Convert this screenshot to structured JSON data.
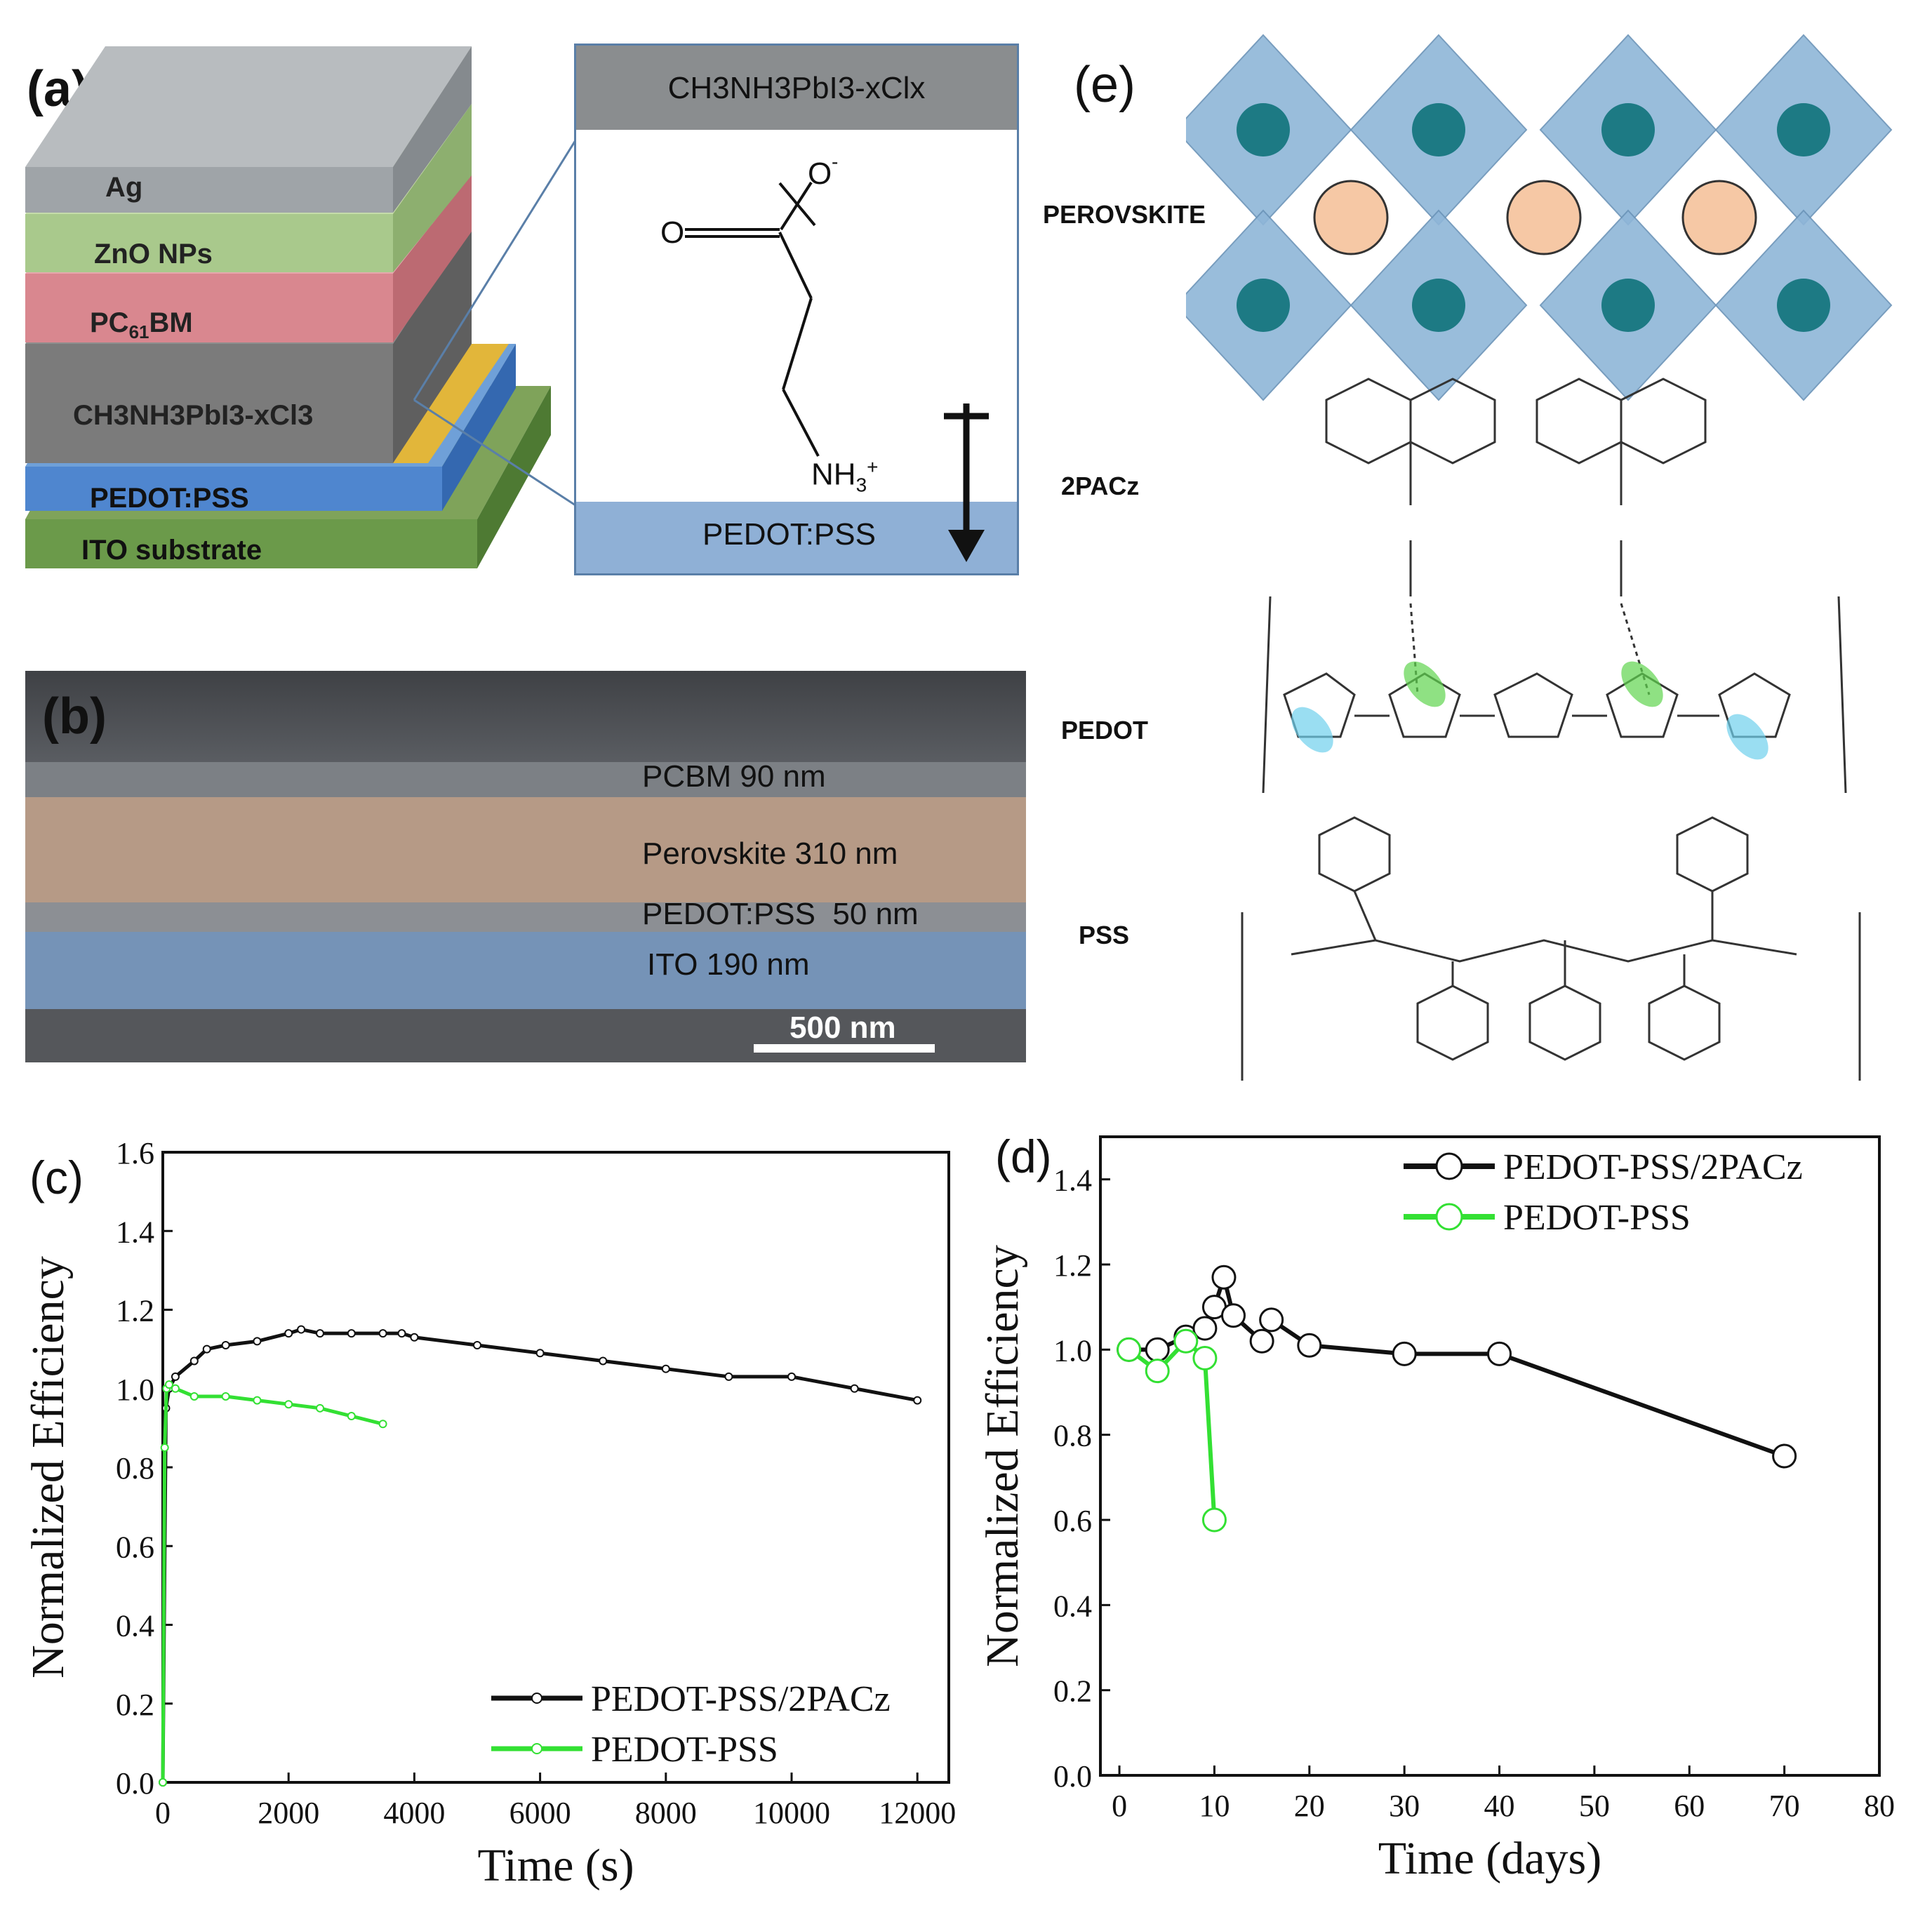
{
  "panels": {
    "a": {
      "label": "(a)",
      "layers": [
        "Ag",
        "ZnO NPs",
        "PC61BM",
        "CH3NH3PbI3-xCl3",
        "PEDOT:PSS",
        "ITO substrate"
      ],
      "pc_main": "PC",
      "pc_sub": "61",
      "pc_tail": "BM",
      "inset_top": "CH3NH3PbI3-xClx",
      "inset_bottom": "PEDOT:PSS",
      "mol_o_minus": "O",
      "mol_o": "O",
      "mol_nh": "NH"
    },
    "b": {
      "label": "(b)",
      "layers": [
        "PCBM 90 nm",
        "Perovskite 310 nm",
        "PEDOT:PSS  50 nm",
        "ITO 190 nm"
      ],
      "scale": "500 nm"
    },
    "e": {
      "label": "(e)",
      "rows": [
        "PEROVSKITE",
        "2PACz",
        "PEDOT",
        "PSS"
      ]
    }
  },
  "chart_data": [
    {
      "panel": "(c)",
      "type": "line",
      "xlabel": "Time (s)",
      "ylabel": "Normalized Efficiency",
      "xlim": [
        0,
        12500
      ],
      "ylim": [
        0.0,
        1.6
      ],
      "xticks": [
        0,
        2000,
        4000,
        6000,
        8000,
        10000,
        12000
      ],
      "yticks": [
        0.0,
        0.2,
        0.4,
        0.6,
        0.8,
        1.0,
        1.2,
        1.4,
        1.6
      ],
      "legend_position": "bottom-right",
      "series": [
        {
          "name": "PEDOT-PSS/2PACz",
          "color": "#111111",
          "x": [
            0,
            50,
            100,
            200,
            500,
            700,
            1000,
            1500,
            2000,
            2200,
            2500,
            3000,
            3500,
            3800,
            4000,
            5000,
            6000,
            7000,
            8000,
            9000,
            10000,
            11000,
            12000
          ],
          "y": [
            0.0,
            0.95,
            1.0,
            1.03,
            1.07,
            1.1,
            1.11,
            1.12,
            1.14,
            1.15,
            1.14,
            1.14,
            1.14,
            1.14,
            1.13,
            1.11,
            1.09,
            1.07,
            1.05,
            1.03,
            1.03,
            1.0,
            0.97
          ]
        },
        {
          "name": "PEDOT-PSS",
          "color": "#33e033",
          "x": [
            0,
            30,
            60,
            100,
            200,
            500,
            1000,
            1500,
            2000,
            2500,
            3000,
            3500
          ],
          "y": [
            0.0,
            0.85,
            1.0,
            1.01,
            1.0,
            0.98,
            0.98,
            0.97,
            0.96,
            0.95,
            0.93,
            0.91
          ]
        }
      ]
    },
    {
      "panel": "(d)",
      "type": "line",
      "xlabel": "Time (days)",
      "ylabel": "Normalized Efficiency",
      "xlim": [
        -2,
        80
      ],
      "ylim": [
        0.0,
        1.5
      ],
      "xticks": [
        0,
        10,
        20,
        30,
        40,
        50,
        60,
        70,
        80
      ],
      "yticks": [
        0.0,
        0.2,
        0.4,
        0.6,
        0.8,
        1.0,
        1.2,
        1.4
      ],
      "legend_position": "top-right",
      "series": [
        {
          "name": "PEDOT-PSS/2PACz",
          "color": "#111111",
          "x": [
            1,
            4,
            7,
            9,
            10,
            11,
            12,
            15,
            16,
            20,
            30,
            40,
            70
          ],
          "y": [
            1.0,
            1.0,
            1.03,
            1.05,
            1.1,
            1.17,
            1.08,
            1.02,
            1.07,
            1.01,
            0.99,
            0.99,
            0.75
          ]
        },
        {
          "name": "PEDOT-PSS",
          "color": "#33e033",
          "x": [
            1,
            4,
            7,
            9,
            10
          ],
          "y": [
            1.0,
            0.95,
            1.02,
            0.98,
            0.6
          ]
        }
      ]
    }
  ]
}
